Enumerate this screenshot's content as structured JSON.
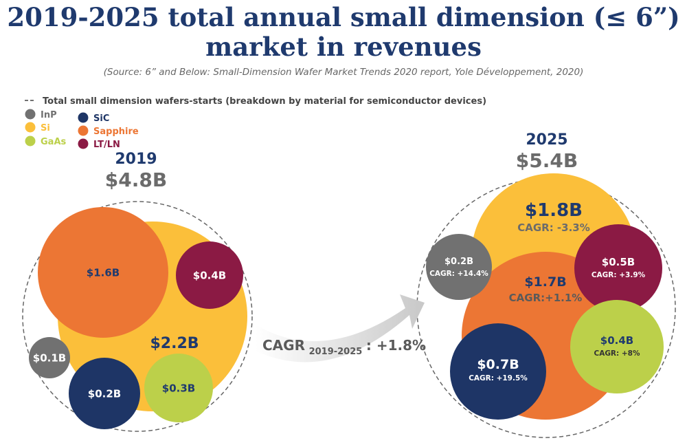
{
  "title_line1": "2019-2025 total annual small dimension (≤ 6”)",
  "title_line2": "market in revenues",
  "source": "(Source: 6” and Below: Small-Dimension Wafer Market Trends 2020 report, Yole Développement, 2020)",
  "chart_data": {
    "type": "bubble",
    "dashed_legend": "Total small dimension wafers-starts (breakdown by material for semiconductor devices)",
    "legend": [
      {
        "name": "InP",
        "color": "#717171"
      },
      {
        "name": "Si",
        "color": "#fbbf3a"
      },
      {
        "name": "GaAs",
        "color": "#bcd04a"
      },
      {
        "name": "SiC",
        "color": "#1e3566"
      },
      {
        "name": "Sapphire",
        "color": "#ec7634"
      },
      {
        "name": "LT/LN",
        "color": "#8b1a44"
      }
    ],
    "years": [
      {
        "year": "2019",
        "total": "$4.8B",
        "segments": [
          {
            "material": "Sapphire",
            "value": 1.6,
            "label": "$1.6B"
          },
          {
            "material": "Si",
            "value": 2.2,
            "label": "$2.2B"
          },
          {
            "material": "LT/LN",
            "value": 0.4,
            "label": "$0.4B"
          },
          {
            "material": "InP",
            "value": 0.1,
            "label": "$0.1B"
          },
          {
            "material": "SiC",
            "value": 0.2,
            "label": "$0.2B"
          },
          {
            "material": "GaAs",
            "value": 0.3,
            "label": "$0.3B"
          }
        ]
      },
      {
        "year": "2025",
        "total": "$5.4B",
        "segments": [
          {
            "material": "Si",
            "value": 1.8,
            "label": "$1.8B",
            "cagr": "CAGR: -3.3%"
          },
          {
            "material": "InP",
            "value": 0.2,
            "label": "$0.2B",
            "cagr": "CAGR: +14.4%"
          },
          {
            "material": "Sapphire",
            "value": 1.7,
            "label": "$1.7B",
            "cagr": "CAGR:+1.1%"
          },
          {
            "material": "LT/LN",
            "value": 0.5,
            "label": "$0.5B",
            "cagr": "CAGR: +3.9%"
          },
          {
            "material": "GaAs",
            "value": 0.4,
            "label": "$0.4B",
            "cagr": "CAGR: +8%"
          },
          {
            "material": "SiC",
            "value": 0.7,
            "label": "$0.7B",
            "cagr": "CAGR: +19.5%"
          }
        ]
      }
    ],
    "overall_cagr": {
      "prefix": "CAGR",
      "period": "2019-2025",
      "value": ": +1.8%"
    }
  }
}
